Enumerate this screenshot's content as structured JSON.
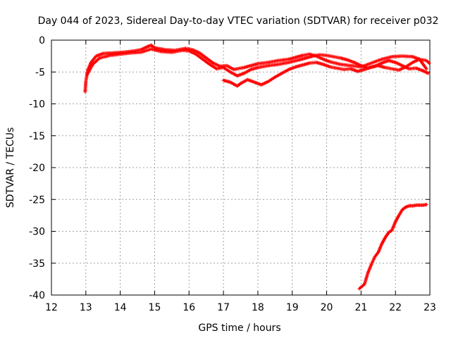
{
  "chart_data": {
    "type": "scatter",
    "title": "Day 044 of 2023, Sidereal Day-to-day VTEC variation (SDTVAR) for receiver p032",
    "xlabel": "GPS time / hours",
    "ylabel": "SDTVAR / TECUs",
    "xlim": [
      12,
      23
    ],
    "ylim": [
      -40,
      0
    ],
    "x_ticks": [
      12,
      13,
      14,
      15,
      16,
      17,
      18,
      19,
      20,
      21,
      22,
      23
    ],
    "y_ticks": [
      0,
      -5,
      -10,
      -15,
      -20,
      -25,
      -30,
      -35,
      -40
    ],
    "x_tick_labels": [
      "12",
      "13",
      "14",
      "15",
      "16",
      "17",
      "18",
      "19",
      "20",
      "21",
      "22",
      "23"
    ],
    "y_tick_labels": [
      "0",
      "-5",
      "-10",
      "-15",
      "-20",
      "-25",
      "-30",
      "-35",
      "-40"
    ],
    "grid": true,
    "marker": "plus",
    "color": "#ff0000",
    "series": [
      {
        "name": "satellite-track-upper",
        "points": [
          [
            12.98,
            -8.1
          ],
          [
            13.0,
            -6.5
          ],
          [
            13.05,
            -4.8
          ],
          [
            13.15,
            -3.5
          ],
          [
            13.3,
            -2.5
          ],
          [
            13.5,
            -2.1
          ],
          [
            13.8,
            -2.0
          ],
          [
            14.1,
            -1.9
          ],
          [
            14.4,
            -1.7
          ],
          [
            14.6,
            -1.5
          ],
          [
            14.8,
            -1.0
          ],
          [
            14.9,
            -0.8
          ],
          [
            15.0,
            -1.2
          ],
          [
            15.3,
            -1.5
          ],
          [
            15.6,
            -1.6
          ],
          [
            15.9,
            -1.3
          ],
          [
            16.1,
            -1.5
          ],
          [
            16.3,
            -2.0
          ],
          [
            16.5,
            -2.8
          ],
          [
            16.7,
            -3.6
          ],
          [
            16.9,
            -4.1
          ],
          [
            17.1,
            -4.0
          ],
          [
            17.3,
            -4.6
          ],
          [
            17.6,
            -4.3
          ],
          [
            17.8,
            -4.0
          ],
          [
            18.0,
            -3.7
          ],
          [
            18.3,
            -3.5
          ],
          [
            18.6,
            -3.2
          ],
          [
            18.9,
            -3.0
          ],
          [
            19.1,
            -2.7
          ],
          [
            19.3,
            -2.4
          ],
          [
            19.5,
            -2.2
          ],
          [
            19.7,
            -2.5
          ],
          [
            19.9,
            -3.0
          ],
          [
            20.1,
            -3.4
          ],
          [
            20.4,
            -3.8
          ],
          [
            20.7,
            -4.0
          ],
          [
            21.0,
            -4.2
          ],
          [
            21.3,
            -3.6
          ],
          [
            21.6,
            -3.0
          ],
          [
            21.9,
            -2.6
          ],
          [
            22.2,
            -2.5
          ],
          [
            22.5,
            -2.6
          ],
          [
            22.7,
            -3.0
          ],
          [
            22.9,
            -4.5
          ]
        ]
      },
      {
        "name": "satellite-track-middle",
        "points": [
          [
            13.05,
            -5.3
          ],
          [
            13.2,
            -3.8
          ],
          [
            13.4,
            -2.8
          ],
          [
            13.7,
            -2.4
          ],
          [
            14.0,
            -2.2
          ],
          [
            14.3,
            -2.0
          ],
          [
            14.6,
            -1.9
          ],
          [
            14.9,
            -1.4
          ],
          [
            15.2,
            -1.8
          ],
          [
            15.5,
            -1.9
          ],
          [
            15.8,
            -1.6
          ],
          [
            16.0,
            -1.7
          ],
          [
            16.2,
            -2.2
          ],
          [
            16.4,
            -3.0
          ],
          [
            16.6,
            -3.8
          ],
          [
            16.8,
            -4.5
          ],
          [
            17.0,
            -4.3
          ],
          [
            17.2,
            -5.0
          ],
          [
            17.4,
            -5.6
          ],
          [
            17.6,
            -5.2
          ],
          [
            17.8,
            -4.6
          ],
          [
            18.0,
            -4.3
          ],
          [
            18.3,
            -4.0
          ],
          [
            18.6,
            -3.8
          ],
          [
            18.9,
            -3.5
          ],
          [
            19.2,
            -3.1
          ],
          [
            19.4,
            -2.8
          ],
          [
            19.6,
            -2.5
          ],
          [
            19.8,
            -2.3
          ],
          [
            20.0,
            -2.4
          ],
          [
            20.2,
            -2.6
          ],
          [
            20.4,
            -2.8
          ],
          [
            20.6,
            -3.1
          ],
          [
            20.8,
            -3.5
          ],
          [
            21.0,
            -4.0
          ],
          [
            21.2,
            -4.4
          ],
          [
            21.4,
            -4.1
          ],
          [
            21.6,
            -3.6
          ],
          [
            21.8,
            -3.2
          ],
          [
            22.0,
            -3.5
          ],
          [
            22.2,
            -4.0
          ],
          [
            22.4,
            -4.5
          ],
          [
            22.6,
            -4.4
          ],
          [
            22.8,
            -4.8
          ],
          [
            22.95,
            -5.2
          ]
        ]
      },
      {
        "name": "satellite-track-lower",
        "points": [
          [
            17.0,
            -6.3
          ],
          [
            17.2,
            -6.6
          ],
          [
            17.4,
            -7.2
          ],
          [
            17.5,
            -6.8
          ],
          [
            17.7,
            -6.2
          ],
          [
            17.9,
            -6.6
          ],
          [
            18.1,
            -7.0
          ],
          [
            18.3,
            -6.5
          ],
          [
            18.5,
            -5.8
          ],
          [
            18.7,
            -5.2
          ],
          [
            18.9,
            -4.6
          ],
          [
            19.1,
            -4.2
          ],
          [
            19.3,
            -3.9
          ],
          [
            19.5,
            -3.6
          ],
          [
            19.7,
            -3.5
          ],
          [
            19.9,
            -3.8
          ],
          [
            20.1,
            -4.2
          ],
          [
            20.3,
            -4.4
          ],
          [
            20.5,
            -4.6
          ],
          [
            20.7,
            -4.5
          ],
          [
            20.9,
            -4.9
          ],
          [
            21.1,
            -4.6
          ],
          [
            21.3,
            -4.2
          ],
          [
            21.5,
            -4.0
          ],
          [
            21.7,
            -4.3
          ],
          [
            21.9,
            -4.5
          ],
          [
            22.1,
            -4.7
          ],
          [
            22.3,
            -4.2
          ],
          [
            22.5,
            -3.5
          ],
          [
            22.7,
            -3.0
          ],
          [
            22.9,
            -3.2
          ],
          [
            22.98,
            -3.6
          ]
        ]
      },
      {
        "name": "satellite-track-rising",
        "points": [
          [
            20.95,
            -39.0
          ],
          [
            21.1,
            -38.3
          ],
          [
            21.2,
            -36.5
          ],
          [
            21.3,
            -35.2
          ],
          [
            21.4,
            -34.0
          ],
          [
            21.5,
            -33.3
          ],
          [
            21.6,
            -32.0
          ],
          [
            21.7,
            -31.0
          ],
          [
            21.8,
            -30.2
          ],
          [
            21.9,
            -29.8
          ],
          [
            22.0,
            -28.5
          ],
          [
            22.1,
            -27.5
          ],
          [
            22.2,
            -26.6
          ],
          [
            22.3,
            -26.2
          ],
          [
            22.4,
            -26.0
          ],
          [
            22.5,
            -26.0
          ],
          [
            22.6,
            -25.9
          ],
          [
            22.7,
            -25.9
          ],
          [
            22.8,
            -25.9
          ],
          [
            22.9,
            -25.8
          ]
        ]
      }
    ]
  }
}
